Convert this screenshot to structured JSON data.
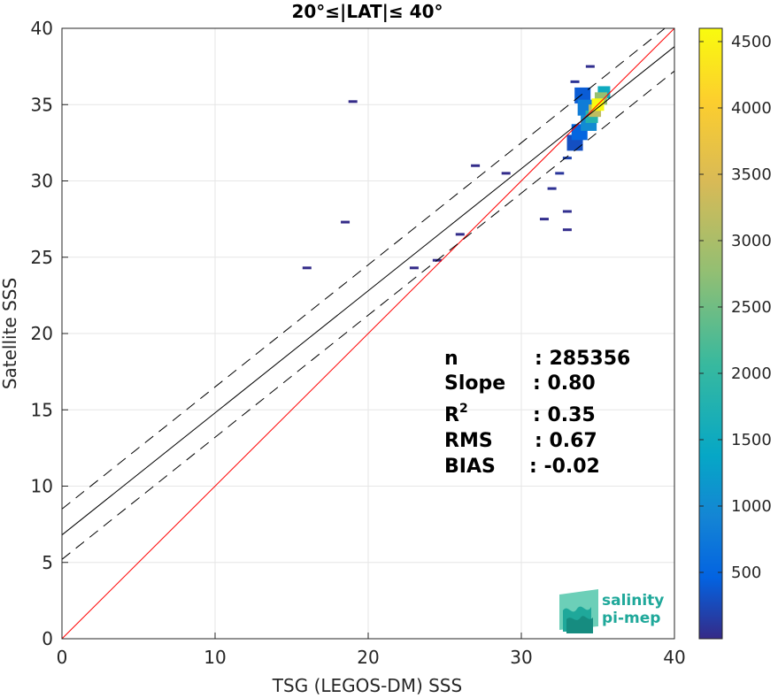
{
  "chart_data": {
    "type": "heatmap",
    "title": "20°≤|LAT|≤ 40°",
    "xlabel": "TSG (LEGOS-DM) SSS",
    "ylabel": "Satellite SSS",
    "xlim": [
      0,
      40
    ],
    "ylim": [
      0,
      40
    ],
    "xticks": [
      "0",
      "10",
      "20",
      "30",
      "40"
    ],
    "yticks": [
      "0",
      "5",
      "10",
      "15",
      "20",
      "25",
      "30",
      "35",
      "40"
    ],
    "grid": true,
    "colorbar": {
      "range": [
        0,
        4600
      ],
      "ticks": [
        "500",
        "1000",
        "1500",
        "2000",
        "2500",
        "3000",
        "3500",
        "4000",
        "4500"
      ],
      "colormap": "parula"
    },
    "lines": [
      {
        "name": "identity",
        "slope": 1.0,
        "intercept": 0.0,
        "style": "solid",
        "color": "#ff0000"
      },
      {
        "name": "regression",
        "slope": 0.8,
        "intercept": 6.8,
        "style": "solid",
        "color": "#000000"
      },
      {
        "name": "regression-upper",
        "slope": 0.8,
        "intercept": 8.5,
        "style": "dashed",
        "color": "#000000"
      },
      {
        "name": "regression-lower",
        "slope": 0.8,
        "intercept": 5.2,
        "style": "dashed",
        "color": "#000000"
      }
    ],
    "density_cells": [
      {
        "x": 35.0,
        "y": 35.0,
        "count": 4600
      },
      {
        "x": 34.8,
        "y": 34.6,
        "count": 3200
      },
      {
        "x": 35.2,
        "y": 35.4,
        "count": 2800
      },
      {
        "x": 34.6,
        "y": 34.2,
        "count": 1800
      },
      {
        "x": 35.4,
        "y": 35.8,
        "count": 1500
      },
      {
        "x": 34.4,
        "y": 33.8,
        "count": 1000
      },
      {
        "x": 34.2,
        "y": 34.8,
        "count": 800
      },
      {
        "x": 33.8,
        "y": 33.2,
        "count": 500
      },
      {
        "x": 34.0,
        "y": 35.6,
        "count": 400
      },
      {
        "x": 33.5,
        "y": 32.5,
        "count": 300
      },
      {
        "x": 33.0,
        "y": 31.5,
        "count": 200
      },
      {
        "x": 32.5,
        "y": 30.5,
        "count": 100
      },
      {
        "x": 33.5,
        "y": 36.5,
        "count": 80
      },
      {
        "x": 34.5,
        "y": 37.5,
        "count": 40
      },
      {
        "x": 32.0,
        "y": 29.5,
        "count": 60
      },
      {
        "x": 33.0,
        "y": 28.0,
        "count": 40
      },
      {
        "x": 31.5,
        "y": 27.5,
        "count": 30
      },
      {
        "x": 33.0,
        "y": 26.8,
        "count": 20
      },
      {
        "x": 29.0,
        "y": 30.5,
        "count": 20
      },
      {
        "x": 27.0,
        "y": 31.0,
        "count": 15
      },
      {
        "x": 26.0,
        "y": 26.5,
        "count": 15
      },
      {
        "x": 24.5,
        "y": 24.8,
        "count": 15
      },
      {
        "x": 23.0,
        "y": 24.3,
        "count": 10
      },
      {
        "x": 16.0,
        "y": 24.3,
        "count": 10
      },
      {
        "x": 19.0,
        "y": 35.2,
        "count": 5
      },
      {
        "x": 18.5,
        "y": 27.3,
        "count": 5
      }
    ],
    "stats": [
      {
        "label": "n",
        "value": ": 285356"
      },
      {
        "label": "Slope",
        "value": ": 0.80"
      },
      {
        "label": "R",
        "sup": "2",
        "value": ": 0.35"
      },
      {
        "label": "RMS",
        "value": ": 0.67"
      },
      {
        "label": "BIAS",
        "value": ": -0.02"
      }
    ]
  },
  "logo": {
    "line1": "salinity",
    "line2": "pi-mep"
  }
}
